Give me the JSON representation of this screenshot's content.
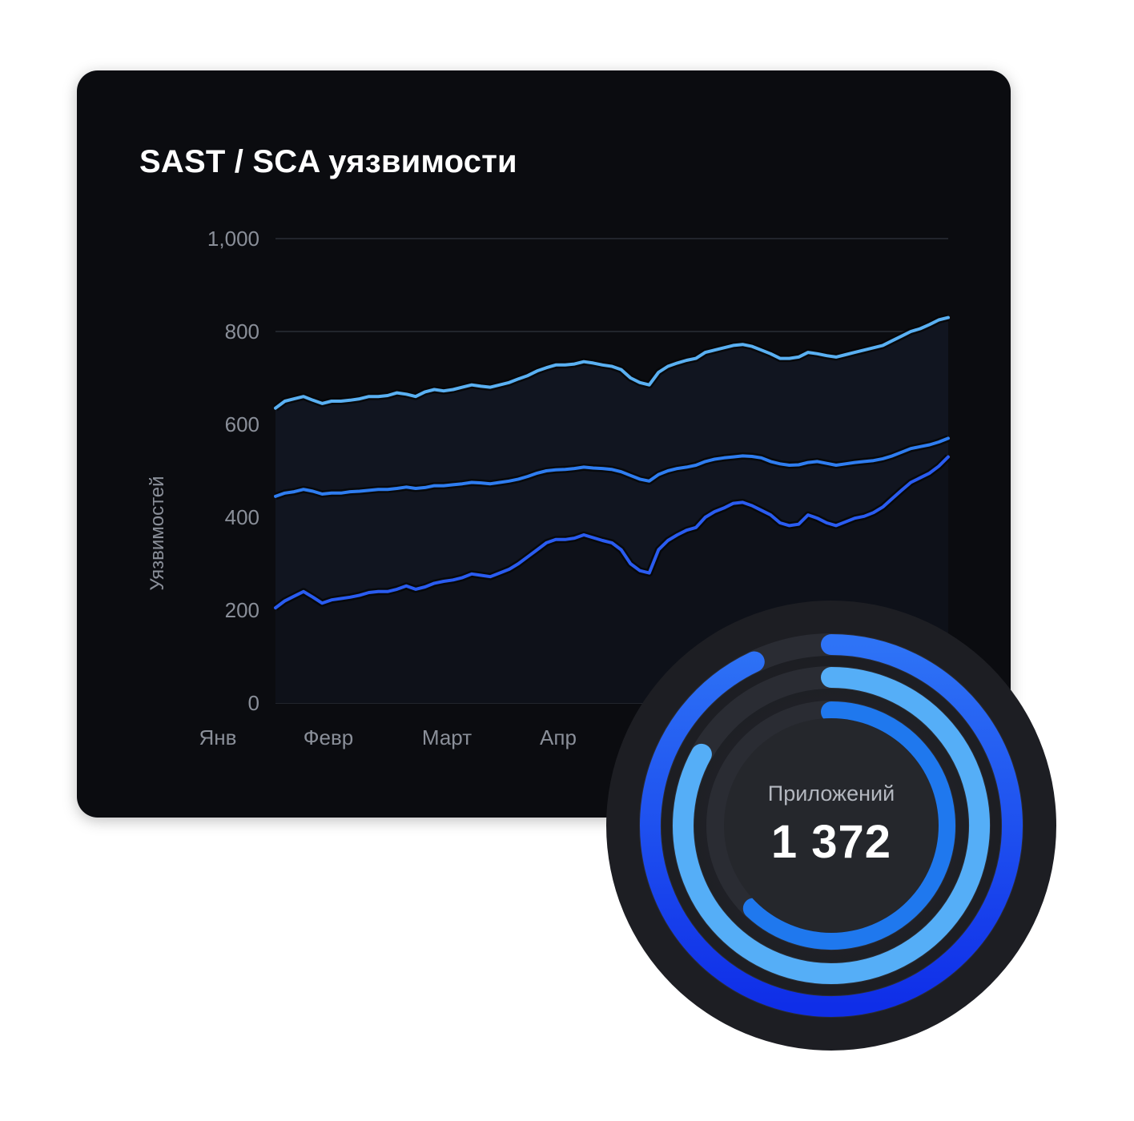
{
  "card": {
    "title": "SAST / SCA уязвимости"
  },
  "chart_data": {
    "type": "line",
    "ylabel": "Уязвимостей",
    "ylim": [
      0,
      1000
    ],
    "yticks": [
      "0",
      "200",
      "400",
      "600",
      "800",
      "1,000"
    ],
    "xticks": [
      "Янв",
      "Февр",
      "Март",
      "Апр"
    ],
    "colors": [
      "#5ab0f2",
      "#2f7df0",
      "#2a5cf0"
    ],
    "series": [
      {
        "values": [
          635,
          650,
          655,
          660,
          652,
          645,
          650,
          650,
          652,
          655,
          660,
          660,
          662,
          668,
          665,
          660,
          670,
          675,
          672,
          675,
          680,
          685,
          682,
          680,
          685,
          690,
          698,
          705,
          715,
          722,
          728,
          728,
          730,
          735,
          732,
          728,
          725,
          718,
          700,
          690,
          685,
          712,
          725,
          732,
          738,
          742,
          755,
          760,
          765,
          770,
          772,
          768,
          760,
          752,
          742,
          742,
          745,
          755,
          752,
          748,
          745,
          750,
          755,
          760,
          765,
          770,
          780,
          790,
          800,
          806,
          815,
          825,
          830
        ]
      },
      {
        "values": [
          445,
          452,
          455,
          460,
          456,
          450,
          452,
          452,
          455,
          456,
          458,
          460,
          460,
          462,
          465,
          462,
          464,
          468,
          468,
          470,
          472,
          475,
          474,
          472,
          475,
          478,
          482,
          488,
          495,
          500,
          502,
          503,
          505,
          508,
          506,
          505,
          503,
          498,
          490,
          482,
          478,
          492,
          500,
          505,
          508,
          512,
          520,
          525,
          528,
          530,
          532,
          531,
          528,
          520,
          515,
          512,
          513,
          518,
          520,
          516,
          512,
          515,
          518,
          520,
          522,
          526,
          532,
          540,
          548,
          552,
          556,
          562,
          570
        ]
      },
      {
        "values": [
          205,
          220,
          230,
          240,
          228,
          215,
          222,
          225,
          228,
          232,
          238,
          240,
          240,
          245,
          252,
          245,
          250,
          258,
          262,
          265,
          270,
          278,
          275,
          272,
          280,
          288,
          300,
          315,
          330,
          345,
          352,
          352,
          355,
          362,
          356,
          350,
          345,
          330,
          300,
          285,
          280,
          330,
          350,
          362,
          372,
          378,
          400,
          412,
          420,
          430,
          432,
          425,
          415,
          405,
          388,
          382,
          385,
          405,
          398,
          388,
          382,
          390,
          398,
          402,
          410,
          422,
          440,
          458,
          475,
          485,
          495,
          510,
          530
        ]
      }
    ]
  },
  "gauge": {
    "label": "Приложений",
    "value": "1 372",
    "colors": [
      "#2a6ef5",
      "#55aef7",
      "#1f78ee"
    ],
    "rings": [
      {
        "fraction": 0.93
      },
      {
        "fraction": 0.83
      },
      {
        "fraction": 0.62
      }
    ]
  }
}
